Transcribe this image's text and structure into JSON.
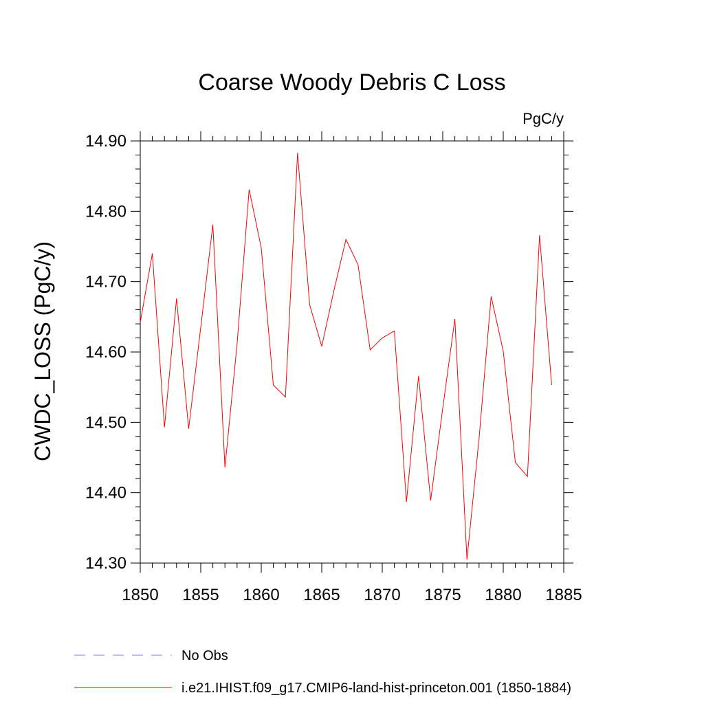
{
  "chart_data": {
    "type": "line",
    "title": "Coarse Woody Debris C Loss",
    "units_label": "PgC/y",
    "ylabel": "CWDC_LOSS  (PgC/y)",
    "xlabel": "",
    "xlim": [
      1850,
      1885
    ],
    "ylim": [
      14.3,
      14.9
    ],
    "x_ticks": [
      "1850",
      "1855",
      "1860",
      "1865",
      "1870",
      "1875",
      "1880",
      "1885"
    ],
    "y_ticks": [
      "14.30",
      "14.40",
      "14.50",
      "14.60",
      "14.70",
      "14.80",
      "14.90"
    ],
    "x": [
      1850,
      1851,
      1852,
      1853,
      1854,
      1855,
      1856,
      1857,
      1858,
      1859,
      1860,
      1861,
      1862,
      1863,
      1864,
      1865,
      1866,
      1867,
      1868,
      1869,
      1870,
      1871,
      1872,
      1873,
      1874,
      1875,
      1876,
      1877,
      1878,
      1879,
      1880,
      1881,
      1882,
      1883,
      1884
    ],
    "series": [
      {
        "name": "i.e21.IHIST.f09_g17.CMIP6-land-hist-princeton.001 (1850-1884)",
        "color": "#ff0000",
        "style": "solid",
        "values": [
          14.642,
          14.74,
          14.493,
          14.676,
          14.491,
          14.635,
          14.781,
          14.436,
          14.611,
          14.831,
          14.748,
          14.553,
          14.536,
          14.883,
          14.667,
          14.608,
          14.687,
          14.76,
          14.724,
          14.603,
          14.62,
          14.63,
          14.387,
          14.566,
          14.389,
          14.52,
          14.647,
          14.305,
          14.477,
          14.679,
          14.601,
          14.443,
          14.423,
          14.766,
          14.553
        ]
      }
    ],
    "legend": [
      {
        "label": "No Obs",
        "color": "#7b7bd6",
        "style": "dashed"
      },
      {
        "label": "i.e21.IHIST.f09_g17.CMIP6-land-hist-princeton.001 (1850-1884)",
        "color": "#ff0000",
        "style": "solid"
      }
    ],
    "legend_placement": "bottom",
    "grid": false
  }
}
